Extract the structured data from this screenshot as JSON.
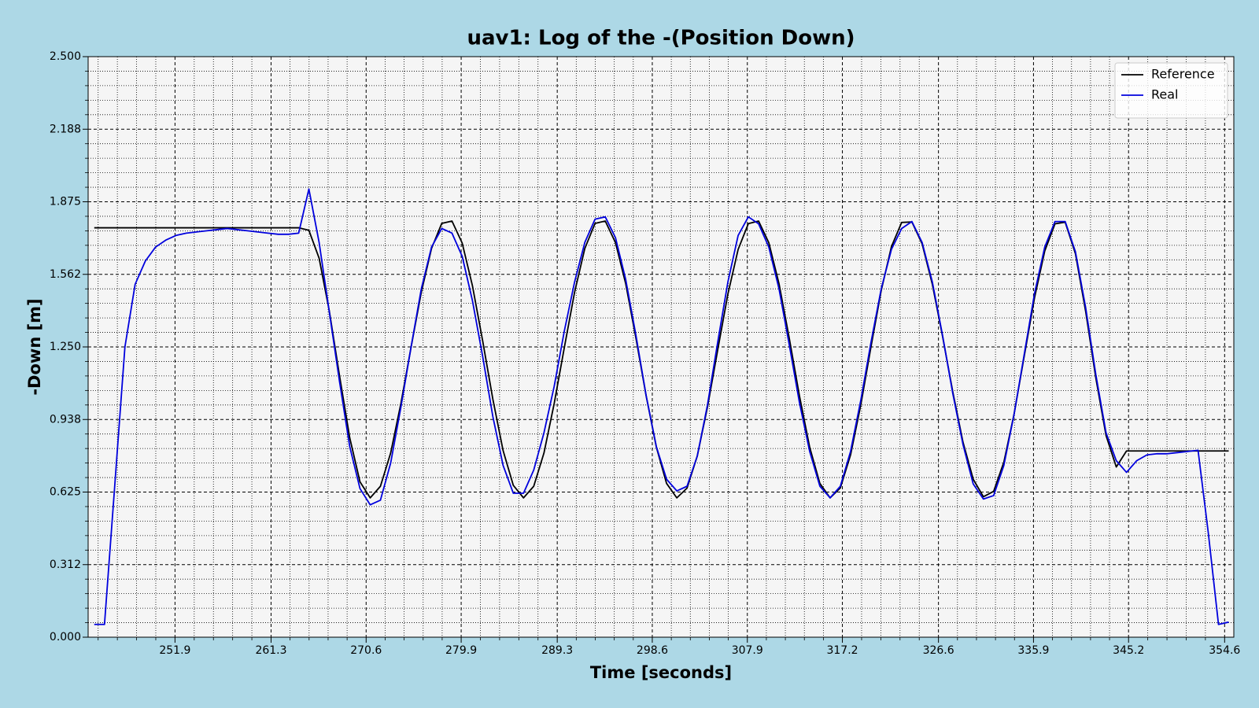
{
  "chart_data": {
    "type": "line",
    "title": "uav1: Log of the -(Position Down)",
    "xlabel": "Time [seconds]",
    "ylabel": "-Down [m]",
    "x": [
      244,
      245,
      246,
      247,
      248,
      249,
      250,
      251,
      252,
      253,
      254,
      255,
      256,
      257,
      258,
      259,
      260,
      261,
      262,
      263,
      264,
      265,
      266,
      267,
      268,
      269,
      270,
      271,
      272,
      273,
      274,
      275,
      276,
      277,
      278,
      279,
      280,
      281,
      282,
      283,
      284,
      285,
      286,
      287,
      288,
      289,
      290,
      291,
      292,
      293,
      294,
      295,
      296,
      297,
      298,
      299,
      300,
      301,
      302,
      303,
      304,
      305,
      306,
      307,
      308,
      309,
      310,
      311,
      312,
      313,
      314,
      315,
      316,
      317,
      318,
      319,
      320,
      321,
      322,
      323,
      324,
      325,
      326,
      327,
      328,
      329,
      330,
      331,
      332,
      333,
      334,
      335,
      336,
      337,
      338,
      339,
      340,
      341,
      342,
      343,
      344,
      345,
      346,
      347,
      348,
      349,
      350,
      351,
      352,
      353,
      354,
      355
    ],
    "series": [
      {
        "name": "Reference",
        "color": "#000000",
        "values": [
          1.763,
          1.763,
          1.763,
          1.763,
          1.763,
          1.763,
          1.763,
          1.763,
          1.763,
          1.763,
          1.763,
          1.763,
          1.763,
          1.763,
          1.763,
          1.763,
          1.763,
          1.763,
          1.763,
          1.763,
          1.763,
          1.752,
          1.632,
          1.404,
          1.125,
          0.858,
          0.669,
          0.6,
          0.65,
          0.793,
          1.006,
          1.249,
          1.486,
          1.674,
          1.782,
          1.792,
          1.697,
          1.514,
          1.277,
          1.025,
          0.804,
          0.654,
          0.6,
          0.65,
          0.793,
          1.006,
          1.249,
          1.486,
          1.674,
          1.782,
          1.792,
          1.699,
          1.522,
          1.288,
          1.039,
          0.818,
          0.662,
          0.6,
          0.642,
          0.78,
          0.991,
          1.237,
          1.478,
          1.67,
          1.781,
          1.792,
          1.699,
          1.522,
          1.288,
          1.039,
          0.818,
          0.662,
          0.6,
          0.643,
          0.785,
          1.0,
          1.251,
          1.493,
          1.682,
          1.786,
          1.788,
          1.694,
          1.52,
          1.296,
          1.057,
          0.84,
          0.68,
          0.605,
          0.628,
          0.754,
          0.961,
          1.212,
          1.462,
          1.663,
          1.78,
          1.787,
          1.652,
          1.404,
          1.116,
          0.868,
          0.733,
          0.802,
          0.802,
          0.802,
          0.802,
          0.802,
          0.802,
          0.802,
          0.802,
          0.802,
          0.802,
          0.802
        ]
      },
      {
        "name": "Real",
        "color": "#0000dd",
        "values": [
          0.055,
          0.055,
          0.65,
          1.25,
          1.52,
          1.62,
          1.68,
          1.71,
          1.73,
          1.74,
          1.745,
          1.75,
          1.755,
          1.76,
          1.755,
          1.75,
          1.745,
          1.74,
          1.735,
          1.735,
          1.74,
          1.93,
          1.7,
          1.4,
          1.1,
          0.82,
          0.64,
          0.57,
          0.59,
          0.75,
          0.99,
          1.25,
          1.5,
          1.68,
          1.76,
          1.74,
          1.64,
          1.45,
          1.21,
          0.95,
          0.74,
          0.62,
          0.62,
          0.72,
          0.88,
          1.08,
          1.32,
          1.53,
          1.7,
          1.8,
          1.81,
          1.72,
          1.54,
          1.3,
          1.04,
          0.82,
          0.68,
          0.63,
          0.65,
          0.78,
          1.0,
          1.27,
          1.53,
          1.73,
          1.81,
          1.78,
          1.68,
          1.5,
          1.26,
          1.01,
          0.8,
          0.65,
          0.6,
          0.65,
          0.8,
          1.02,
          1.27,
          1.5,
          1.67,
          1.76,
          1.79,
          1.7,
          1.53,
          1.3,
          1.05,
          0.83,
          0.66,
          0.595,
          0.61,
          0.74,
          0.96,
          1.22,
          1.48,
          1.68,
          1.79,
          1.79,
          1.66,
          1.42,
          1.13,
          0.88,
          0.76,
          0.71,
          0.76,
          0.785,
          0.79,
          0.79,
          0.795,
          0.8,
          0.805,
          0.45,
          0.055,
          0.065
        ]
      }
    ],
    "xlim": [
      243.4,
      355.5
    ],
    "xticks": [
      251.9,
      261.3,
      270.6,
      279.9,
      289.3,
      298.6,
      307.9,
      317.2,
      326.6,
      335.9,
      345.2,
      354.6
    ],
    "ylim": [
      0,
      2.5
    ],
    "yticks": [
      {
        "value": 0,
        "label": "0.000"
      },
      {
        "value": 0.3125,
        "label": "0.312"
      },
      {
        "value": 0.625,
        "label": "0.625"
      },
      {
        "value": 0.9375,
        "label": "0.938"
      },
      {
        "value": 1.25,
        "label": "1.250"
      },
      {
        "value": 1.5625,
        "label": "1.562"
      },
      {
        "value": 1.875,
        "label": "1.875"
      },
      {
        "value": 2.1875,
        "label": "2.188"
      },
      {
        "value": 2.5,
        "label": "2.500"
      }
    ],
    "grid": true,
    "minor_grid": true,
    "legend": "upper right"
  }
}
